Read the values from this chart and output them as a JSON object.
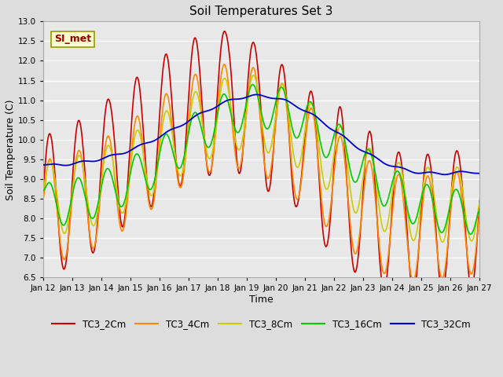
{
  "title": "Soil Temperatures Set 3",
  "xlabel": "Time",
  "ylabel": "Soil Temperature (C)",
  "ylim": [
    6.5,
    13.0
  ],
  "xlim": [
    0,
    360
  ],
  "x_tick_labels": [
    "Jan 12",
    "Jan 13",
    "Jan 14",
    "Jan 15",
    "Jan 16",
    "Jan 17",
    "Jan 18",
    "Jan 19",
    "Jan 20",
    "Jan 21",
    "Jan 22",
    "Jan 23",
    "Jan 24",
    "Jan 25",
    "Jan 26",
    "Jan 27"
  ],
  "x_tick_positions": [
    0,
    24,
    48,
    72,
    96,
    120,
    144,
    168,
    192,
    216,
    240,
    264,
    288,
    312,
    336,
    360
  ],
  "series_colors": [
    "#cc0000",
    "#ff8800",
    "#cccc00",
    "#00cc00",
    "#0000cc"
  ],
  "series_names": [
    "TC3_2Cm",
    "TC3_4Cm",
    "TC3_8Cm",
    "TC3_16Cm",
    "TC3_32Cm"
  ],
  "annotation_text": "SI_met",
  "annotation_bg": "#ffffcc",
  "annotation_border": "#999900",
  "bg_color": "#dddddd",
  "plot_bg": "#e8e8e8",
  "grid_color": "#ffffff",
  "title_fontsize": 11,
  "label_fontsize": 9,
  "tick_fontsize": 7.5,
  "legend_fontsize": 8.5
}
